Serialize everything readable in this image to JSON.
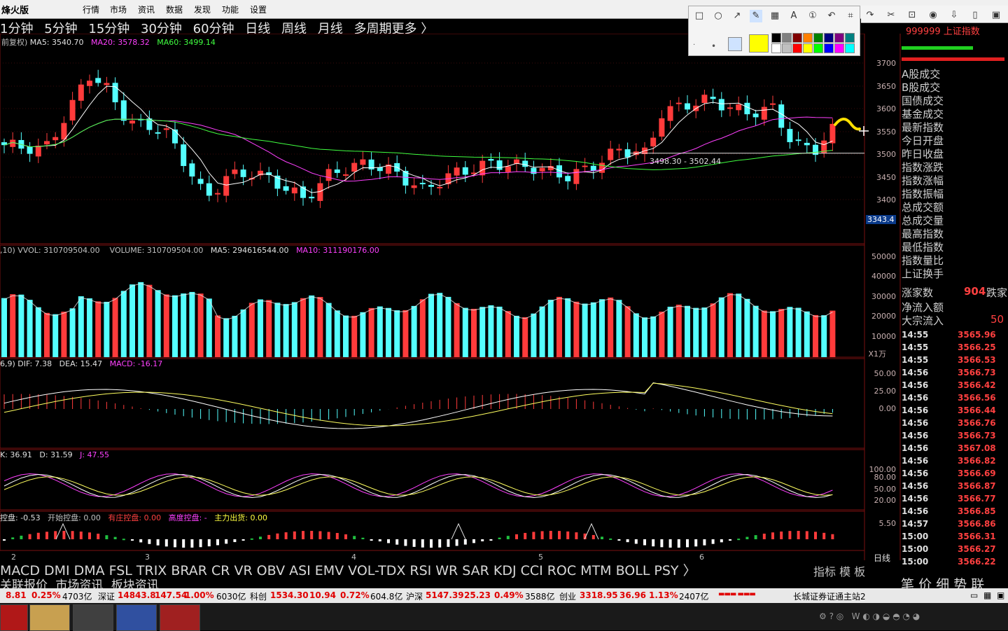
{
  "app": {
    "title": "烽火版"
  },
  "menu": [
    "行情",
    "市场",
    "资讯",
    "数据",
    "发现",
    "功能",
    "设置"
  ],
  "periods": [
    "1分钟",
    "5分钟",
    "15分钟",
    "30分钟",
    "60分钟",
    "日线",
    "周线",
    "月线",
    "多周期更多 〉"
  ],
  "period_selected": "日线",
  "header_right": "999999 上证指数",
  "price_panel": {
    "mode": "前复权)",
    "ma5": "MA5: 3540.70",
    "ma20": "MA20: 3578.32",
    "ma60": "MA60: 3499.14",
    "range_label": "3498.30 - 3502.44",
    "current_tag": "3343.4",
    "y_labels": [
      "3700",
      "3650",
      "3600",
      "3550",
      "3500",
      "3450",
      "3400"
    ]
  },
  "vol_panel": {
    "label1": ",10) VVOL: 310709504.00",
    "label2": "VOLUME: 310709504.00",
    "label3": "MA5: 294616544.00",
    "label4": "MA10: 311190176.00",
    "y_labels": [
      "50000",
      "40000",
      "30000",
      "20000",
      "10000"
    ],
    "unit": "X1万"
  },
  "macd_panel": {
    "label1": "6,9) DIF: 7.38",
    "label2": "DEA: 15.47",
    "label3": "MACD: -16.17",
    "y_labels": [
      "50.00",
      "25.00",
      "0.00"
    ]
  },
  "kdj_panel": {
    "label1": "K: 36.91",
    "label2": "D: 31.59",
    "label3": "J: 47.55",
    "y_labels": [
      "100.00",
      "80.00",
      "50.00",
      "20.00"
    ]
  },
  "kp_panel": {
    "label1": "控盘: -0.53",
    "label2": "开始控盘: 0.00",
    "label3": "有庄控盘: 0.00",
    "label4": "高度控盘: -",
    "label5": "主力出货: 0.00",
    "y_label": "5.50"
  },
  "x_axis": [
    "2",
    "3",
    "4",
    "5",
    "6"
  ],
  "right_panel": {
    "items": [
      "A股成交",
      "B股成交",
      "国债成交",
      "基金成交",
      "最新指数",
      "今日开盘",
      "昨日收盘",
      "指数涨跌",
      "指数涨幅",
      "指数振幅",
      "总成交额",
      "总成交量",
      "最高指数",
      "最低指数",
      "指数量比",
      "上证换手"
    ],
    "up_label": "涨家数",
    "up_value": "904",
    "down_label": "跌家",
    "flow_label": "净流入额",
    "big_label": "大宗流入",
    "big_value": "50",
    "tick_times": [
      "14:55",
      "14:55",
      "14:55",
      "14:56",
      "14:56",
      "14:56",
      "14:56",
      "14:56",
      "14:56",
      "14:56",
      "14:56",
      "14:56",
      "14:56",
      "14:56",
      "14:56",
      "14:57",
      "15:00",
      "15:00",
      "15:00"
    ],
    "tick_prices": [
      "3565.96",
      "3566.25",
      "3566.53",
      "3566.73",
      "3566.42",
      "3566.56",
      "3566.44",
      "3566.76",
      "3566.73",
      "3567.08",
      "3566.82",
      "3566.69",
      "3566.87",
      "3566.77",
      "3566.85",
      "3566.86",
      "3566.31",
      "3566.27",
      "3566.22"
    ],
    "bottom_tabs": [
      "笔",
      "价",
      "细",
      "势",
      "联"
    ]
  },
  "indicator_tabs": [
    "MACD",
    "DMI",
    "DMA",
    "FSL",
    "TRIX",
    "BRAR",
    "CR",
    "VR",
    "OBV",
    "ASI",
    "EMV",
    "VOL-TDX",
    "RSI",
    "WR",
    "SAR",
    "KDJ",
    "CCI",
    "ROC",
    "MTM",
    "BOLL",
    "PSY 〉"
  ],
  "indicator_right": "指标 模 板",
  "day_tab": "日线",
  "sub_tabs": [
    "关联报价",
    "市场资讯",
    "板块资讯"
  ],
  "status": {
    "s1_a": "8.81",
    "s1_b": "0.25%",
    "s1_c": "4703亿",
    "s2_name": "深证",
    "s2_a": "14843.8",
    "s2_b": "147.54",
    "s2_c": "1.00%",
    "s2_d": "6030亿",
    "s3_name": "科创",
    "s3_a": "1534.30",
    "s3_b": "10.94",
    "s3_c": "0.72%",
    "s3_d": "604.8亿",
    "s4_name": "沪深",
    "s4_a": "5147.39",
    "s4_b": "25.23",
    "s4_c": "0.49%",
    "s4_d": "3588亿",
    "s5_name": "创业",
    "s5_a": "3318.95",
    "s5_b": "36.96",
    "s5_c": "1.13%",
    "s5_d": "2407亿",
    "broker": "长城证券证通主站2"
  },
  "colors": {
    "up": "#ff3b3b",
    "down": "#54ffff",
    "ma5": "#ffffff",
    "ma20": "#ff40ff",
    "ma60": "#40ff40",
    "label_yellow": "#ffff40"
  }
}
